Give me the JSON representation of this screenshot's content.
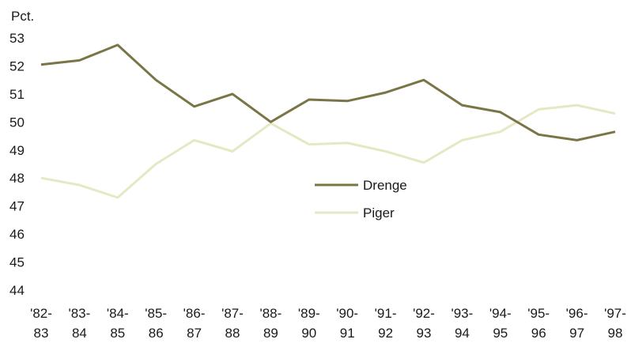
{
  "chart_data": {
    "type": "line",
    "title": "",
    "xlabel": "",
    "ylabel": "",
    "unit_label": "Pct.",
    "ylim": [
      44,
      53
    ],
    "yticks": [
      "44",
      "45",
      "46",
      "47",
      "48",
      "49",
      "50",
      "51",
      "52",
      "53"
    ],
    "categories": [
      [
        "'82-",
        "83"
      ],
      [
        "'83-",
        "84"
      ],
      [
        "'84-",
        "85"
      ],
      [
        "'85-",
        "86"
      ],
      [
        "'86-",
        "87"
      ],
      [
        "'87-",
        "88"
      ],
      [
        "'88-",
        "89"
      ],
      [
        "'89-",
        "90"
      ],
      [
        "'90-",
        "91"
      ],
      [
        "'91-",
        "92"
      ],
      [
        "'92-",
        "93"
      ],
      [
        "'93-",
        "94"
      ],
      [
        "'94-",
        "95"
      ],
      [
        "'95-",
        "96"
      ],
      [
        "'96-",
        "97"
      ],
      [
        "'97-",
        "98"
      ]
    ],
    "series": [
      {
        "name": "Drenge",
        "color": "#7a7546",
        "values": [
          52.05,
          52.2,
          52.75,
          51.5,
          50.55,
          51.0,
          50.0,
          50.8,
          50.75,
          51.05,
          51.5,
          50.6,
          50.35,
          49.55,
          49.35,
          49.65
        ]
      },
      {
        "name": "Piger",
        "color": "#e6e8c4",
        "values": [
          48.0,
          47.75,
          47.3,
          48.5,
          49.35,
          48.95,
          49.95,
          49.2,
          49.25,
          48.95,
          48.55,
          49.35,
          49.65,
          50.45,
          50.6,
          50.3
        ]
      }
    ],
    "legend": {
      "position": "center-right"
    },
    "grid": false
  }
}
